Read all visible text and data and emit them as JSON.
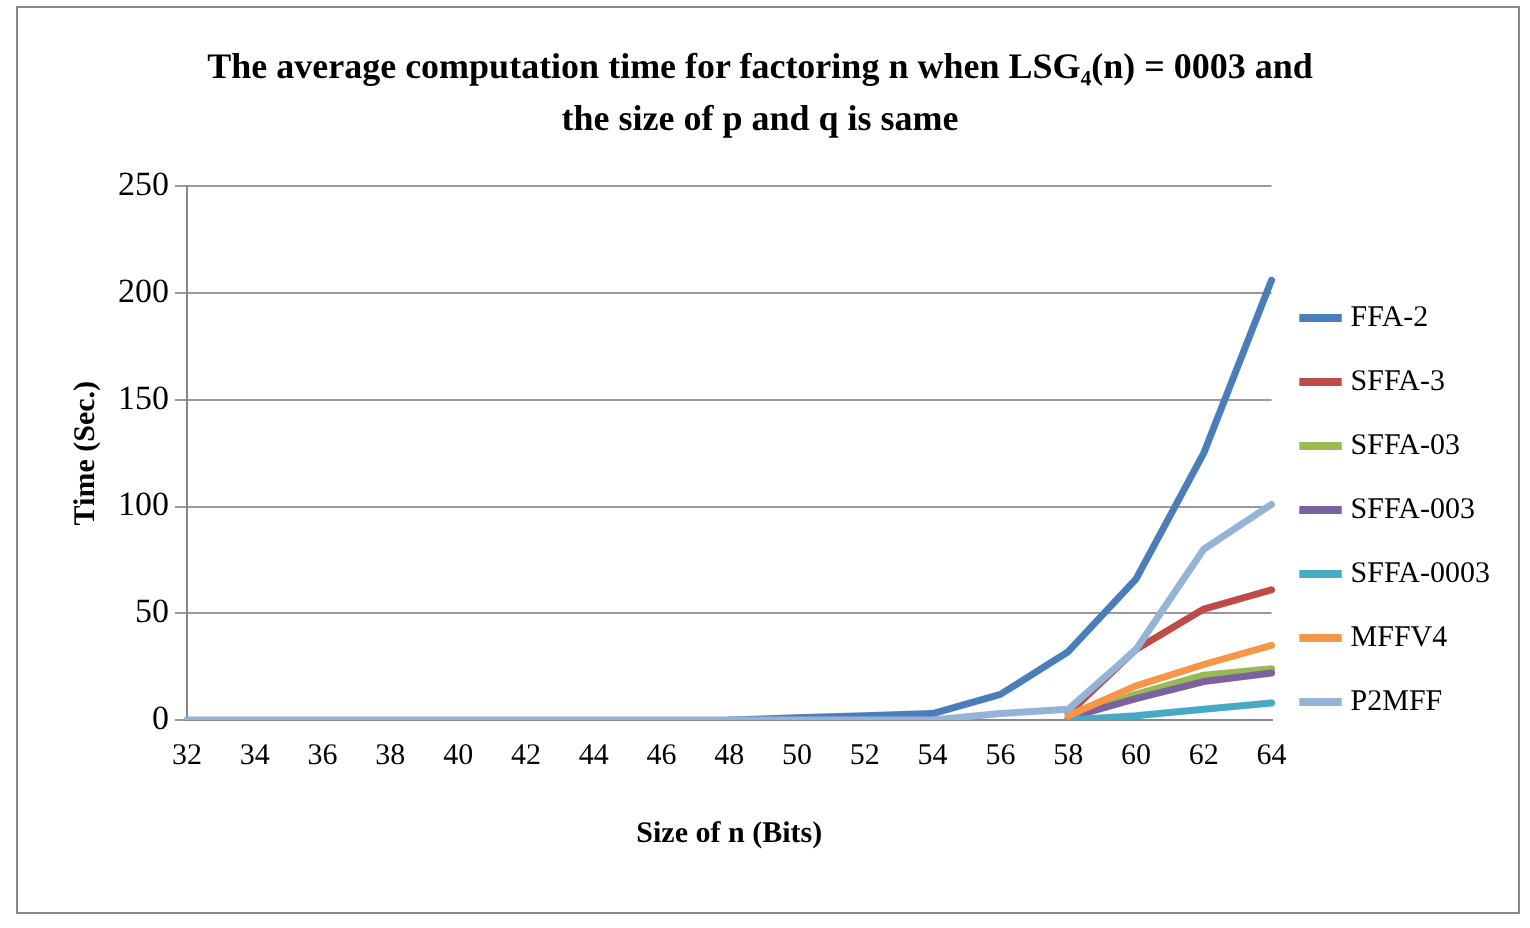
{
  "chart_data": {
    "type": "line",
    "title": "The average computation time for factoring n when LSG₄(n) = 0003 and the size of p and q is same",
    "xlabel": "Size of n (Bits)",
    "ylabel": "Time (Sec.)",
    "categories": [
      "32",
      "34",
      "36",
      "38",
      "40",
      "42",
      "44",
      "46",
      "48",
      "50",
      "52",
      "54",
      "56",
      "58",
      "60",
      "62",
      "64"
    ],
    "ylim": [
      0,
      250
    ],
    "yticks": [
      0,
      50,
      100,
      150,
      200,
      250
    ],
    "grid": "y",
    "legend": "right",
    "marker": "none",
    "line_style": "solid",
    "series": [
      {
        "name": "FFA-2",
        "color": "#4a7ebb",
        "values": [
          null,
          null,
          null,
          null,
          null,
          null,
          null,
          null,
          0,
          1,
          2,
          3,
          12,
          32,
          66,
          125,
          206
        ]
      },
      {
        "name": "SFFA-3",
        "color": "#be4b48",
        "values": [
          null,
          null,
          null,
          null,
          null,
          null,
          null,
          null,
          null,
          null,
          null,
          null,
          null,
          3,
          33,
          52,
          61
        ]
      },
      {
        "name": "SFFA-03",
        "color": "#98b954",
        "values": [
          null,
          null,
          null,
          null,
          null,
          null,
          null,
          null,
          null,
          null,
          null,
          null,
          null,
          1,
          12,
          21,
          24
        ]
      },
      {
        "name": "SFFA-003",
        "color": "#7d60a0",
        "values": [
          null,
          null,
          null,
          null,
          null,
          null,
          null,
          null,
          null,
          null,
          null,
          null,
          null,
          1,
          10,
          18,
          22
        ]
      },
      {
        "name": "SFFA-0003",
        "color": "#46aac5",
        "values": [
          null,
          null,
          null,
          null,
          null,
          null,
          null,
          null,
          null,
          null,
          null,
          null,
          null,
          0,
          2,
          5,
          8
        ]
      },
      {
        "name": "MFFV4",
        "color": "#f79646",
        "values": [
          null,
          null,
          null,
          null,
          null,
          null,
          null,
          null,
          null,
          null,
          null,
          null,
          null,
          2,
          16,
          26,
          35
        ]
      },
      {
        "name": "P2MFF",
        "color": "#95b3d7",
        "values": [
          0,
          0,
          0,
          0,
          0,
          0,
          0,
          0,
          0,
          0,
          0,
          0,
          3,
          5,
          33,
          80,
          101
        ]
      }
    ]
  }
}
